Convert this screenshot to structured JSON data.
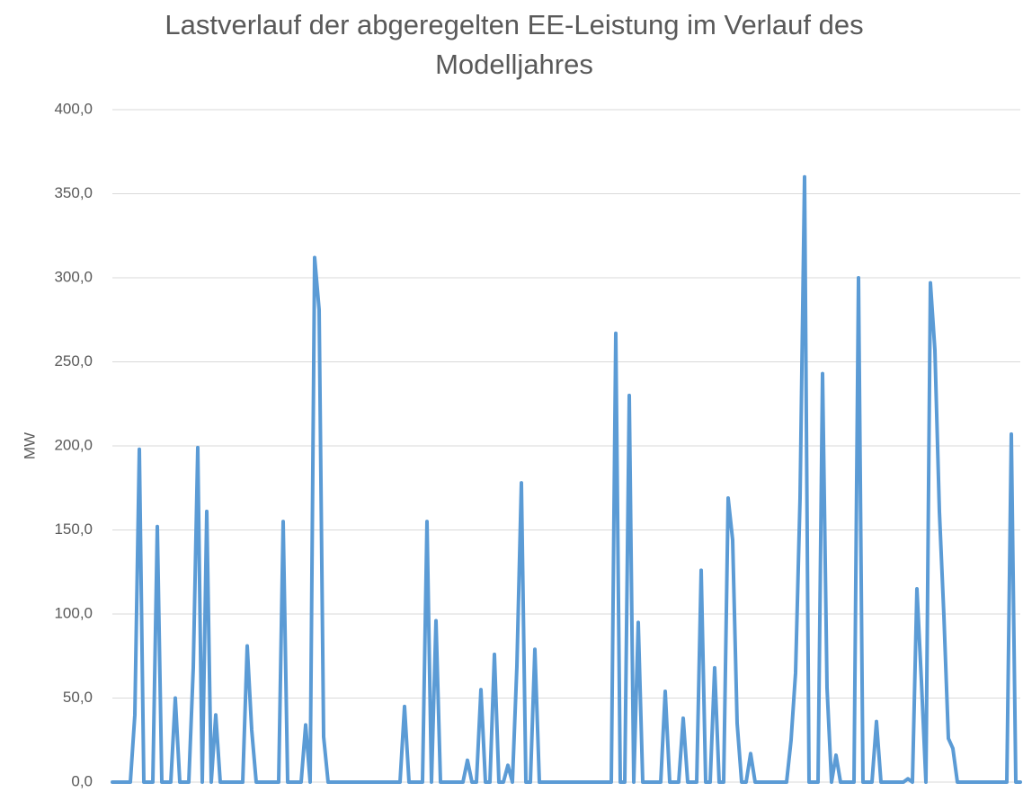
{
  "chart_data": {
    "type": "line",
    "title": "Lastverlauf der abgeregelten EE-Leistung im Verlauf des Modelljahres",
    "y_label": "MW",
    "color": "#5b9bd5",
    "grid": true,
    "ylim": [
      0,
      400
    ],
    "yticks": [
      {
        "value": 0,
        "label": "0,0"
      },
      {
        "value": 50,
        "label": "50,0"
      },
      {
        "value": 100,
        "label": "100,0"
      },
      {
        "value": 150,
        "label": "150,0"
      },
      {
        "value": 200,
        "label": "200,0"
      },
      {
        "value": 250,
        "label": "250,0"
      },
      {
        "value": 300,
        "label": "300,0"
      },
      {
        "value": 350,
        "label": "350,0"
      },
      {
        "value": 400,
        "label": "400,0"
      }
    ],
    "values": [
      0,
      0,
      0,
      0,
      0,
      40,
      198,
      0,
      0,
      0,
      152,
      0,
      0,
      0,
      50,
      0,
      0,
      0,
      68,
      199,
      0,
      161,
      0,
      40,
      0,
      0,
      0,
      0,
      0,
      0,
      81,
      31,
      0,
      0,
      0,
      0,
      0,
      0,
      155,
      0,
      0,
      0,
      0,
      34,
      0,
      312,
      281,
      27,
      0,
      0,
      0,
      0,
      0,
      0,
      0,
      0,
      0,
      0,
      0,
      0,
      0,
      0,
      0,
      0,
      0,
      45,
      0,
      0,
      0,
      0,
      155,
      0,
      96,
      0,
      0,
      0,
      0,
      0,
      0,
      13,
      0,
      0,
      55,
      0,
      0,
      76,
      0,
      0,
      10,
      0,
      69,
      178,
      0,
      0,
      79,
      0,
      0,
      0,
      0,
      0,
      0,
      0,
      0,
      0,
      0,
      0,
      0,
      0,
      0,
      0,
      0,
      0,
      267,
      0,
      0,
      230,
      0,
      95,
      0,
      0,
      0,
      0,
      0,
      54,
      0,
      0,
      0,
      38,
      0,
      0,
      0,
      126,
      0,
      0,
      68,
      0,
      0,
      169,
      144,
      35,
      0,
      0,
      17,
      0,
      0,
      0,
      0,
      0,
      0,
      0,
      0,
      25,
      65,
      169,
      360,
      0,
      0,
      0,
      243,
      56,
      0,
      16,
      0,
      0,
      0,
      0,
      300,
      0,
      0,
      0,
      36,
      0,
      0,
      0,
      0,
      0,
      0,
      2,
      0,
      115,
      60,
      0,
      297,
      257,
      161,
      99,
      26,
      20,
      0,
      0,
      0,
      0,
      0,
      0,
      0,
      0,
      0,
      0,
      0,
      0,
      207,
      0,
      0
    ]
  }
}
